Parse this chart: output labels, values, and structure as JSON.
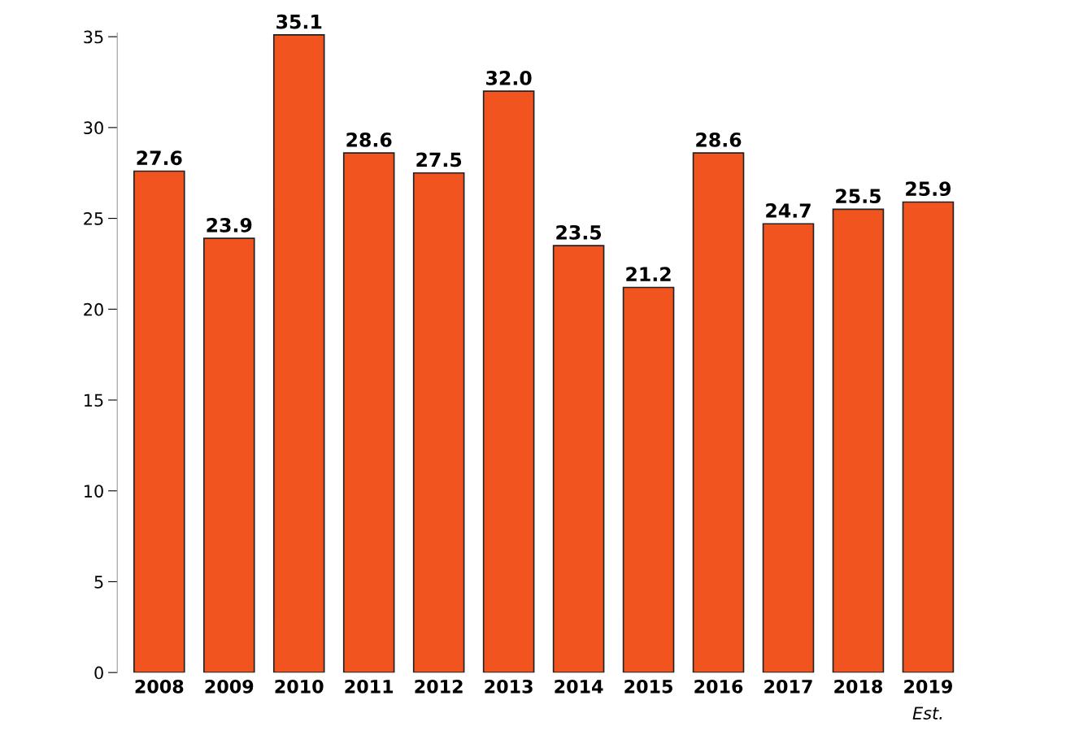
{
  "chart_data": {
    "type": "bar",
    "categories": [
      "2008",
      "2009",
      "2010",
      "2011",
      "2012",
      "2013",
      "2014",
      "2015",
      "2016",
      "2017",
      "2018",
      "2019"
    ],
    "values": [
      27.6,
      23.9,
      35.1,
      28.6,
      27.5,
      32.0,
      23.5,
      21.2,
      28.6,
      24.7,
      25.5,
      25.9
    ],
    "value_labels": [
      "27.6",
      "23.9",
      "35.1",
      "28.6",
      "27.5",
      "32.0",
      "23.5",
      "21.2",
      "28.6",
      "24.7",
      "25.5",
      "25.9"
    ],
    "color": "#f2541f",
    "ylim": [
      0,
      35.2
    ],
    "yticks": [
      0,
      5,
      10,
      15,
      20,
      25,
      30,
      35
    ],
    "annotations": [
      "Est."
    ],
    "grid": false,
    "legend": false
  }
}
